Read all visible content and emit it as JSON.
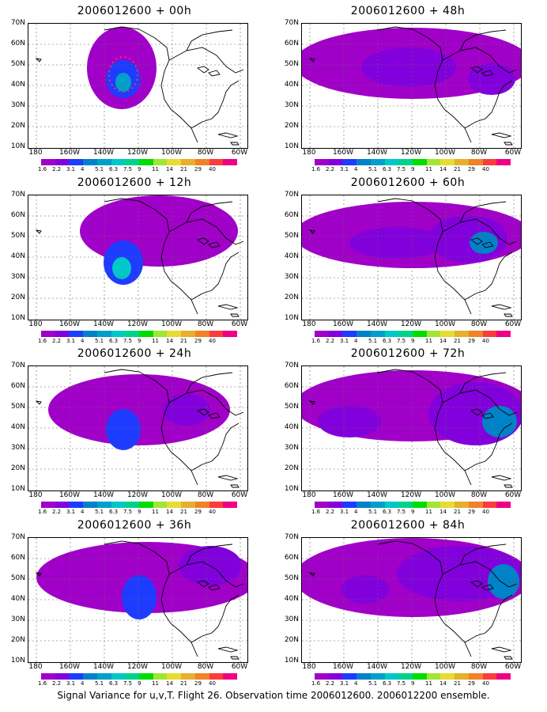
{
  "panels": [
    {
      "title": "2006012600 + 00h",
      "col": 0,
      "row": 0,
      "field": "f00"
    },
    {
      "title": "2006012600 + 48h",
      "col": 1,
      "row": 0,
      "field": "f48"
    },
    {
      "title": "2006012600 + 12h",
      "col": 0,
      "row": 1,
      "field": "f12"
    },
    {
      "title": "2006012600 + 60h",
      "col": 1,
      "row": 1,
      "field": "f60"
    },
    {
      "title": "2006012600 + 24h",
      "col": 0,
      "row": 2,
      "field": "f24"
    },
    {
      "title": "2006012600 + 72h",
      "col": 1,
      "row": 2,
      "field": "f72"
    },
    {
      "title": "2006012600 + 36h",
      "col": 0,
      "row": 3,
      "field": "f36"
    },
    {
      "title": "2006012600 + 84h",
      "col": 1,
      "row": 3,
      "field": "f84"
    }
  ],
  "lat_labels": [
    "70N",
    "60N",
    "50N",
    "40N",
    "30N",
    "20N",
    "10N"
  ],
  "lon_labels": [
    "180",
    "160W",
    "140W",
    "120W",
    "100W",
    "80W",
    "60W"
  ],
  "colorbar": {
    "labels": [
      "1.6",
      "2.2",
      "3.1",
      "4",
      "5.1",
      "6.3",
      "7.5",
      "9",
      "11",
      "14",
      "21",
      "29",
      "40"
    ],
    "colors": [
      "#a000c8",
      "#8200dc",
      "#1e3cff",
      "#0082c8",
      "#00a0c8",
      "#00c8c8",
      "#00d28c",
      "#00dc00",
      "#a0e632",
      "#e6dc32",
      "#e6af2d",
      "#f08228",
      "#fa3c3c",
      "#f00082"
    ]
  },
  "caption": "Signal Variance for u,v,T. Flight 26. Observation time 2006012600. 2006012200 ensemble."
}
